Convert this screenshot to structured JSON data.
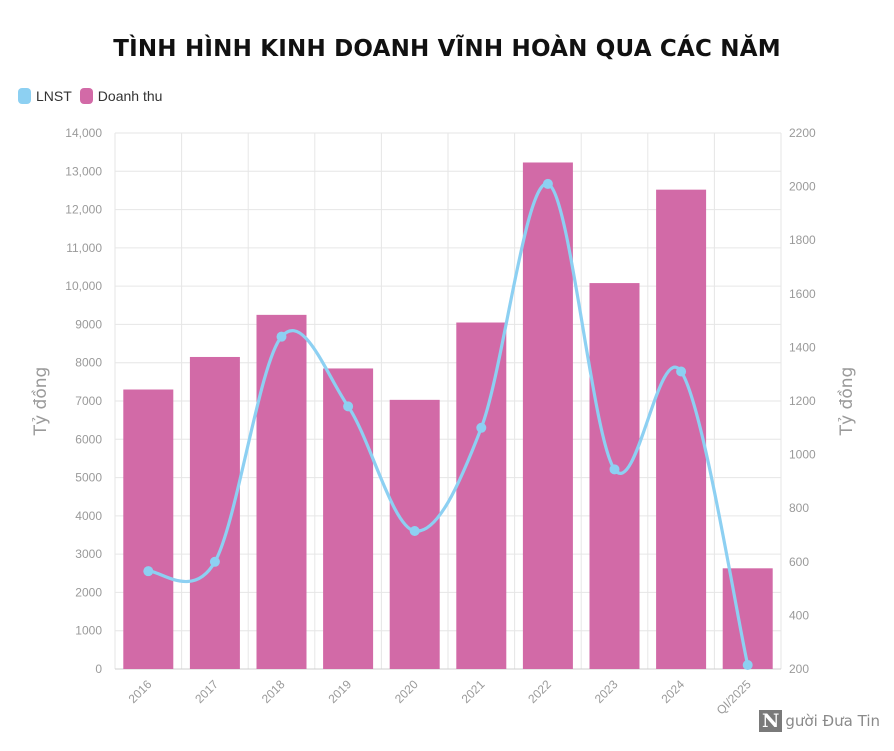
{
  "chart_data": {
    "type": "bar",
    "title": "TÌNH HÌNH KINH DOANH VĨNH HOÀN QUA CÁC NĂM",
    "categories": [
      "2016",
      "2017",
      "2018",
      "2019",
      "2020",
      "2021",
      "2022",
      "2023",
      "2024",
      "QI/2025"
    ],
    "series": [
      {
        "name": "Doanh thu",
        "type": "bar",
        "axis": "left",
        "color": "#d26aa7",
        "values": [
          7300,
          8150,
          9250,
          7850,
          7030,
          9050,
          13230,
          10080,
          12520,
          2630
        ]
      },
      {
        "name": "LNST",
        "type": "line",
        "axis": "right",
        "color": "#8dd0f2",
        "values": [
          565,
          600,
          1440,
          1180,
          715,
          1100,
          2010,
          945,
          1310,
          215
        ]
      }
    ],
    "ylabel": "Tỷ đồng",
    "y2label": "Tỷ đồng",
    "ylim": [
      0,
      14000
    ],
    "y2lim": [
      200,
      2200
    ],
    "yticks": [
      "0",
      "1000",
      "2000",
      "3000",
      "4000",
      "5000",
      "6000",
      "7000",
      "8000",
      "9000",
      "10,000",
      "11,000",
      "12,000",
      "13,000",
      "14,000"
    ],
    "y2ticks": [
      "200",
      "400",
      "600",
      "800",
      "1000",
      "1200",
      "1400",
      "1600",
      "1800",
      "2000",
      "2200"
    ],
    "grid": true,
    "legend_position": "top-left"
  },
  "legend": [
    {
      "label": "LNST",
      "color": "#8dd0f2"
    },
    {
      "label": "Doanh thu",
      "color": "#d26aa7"
    }
  ],
  "watermark": {
    "badge": "N",
    "text": "gười Đưa Tin"
  }
}
